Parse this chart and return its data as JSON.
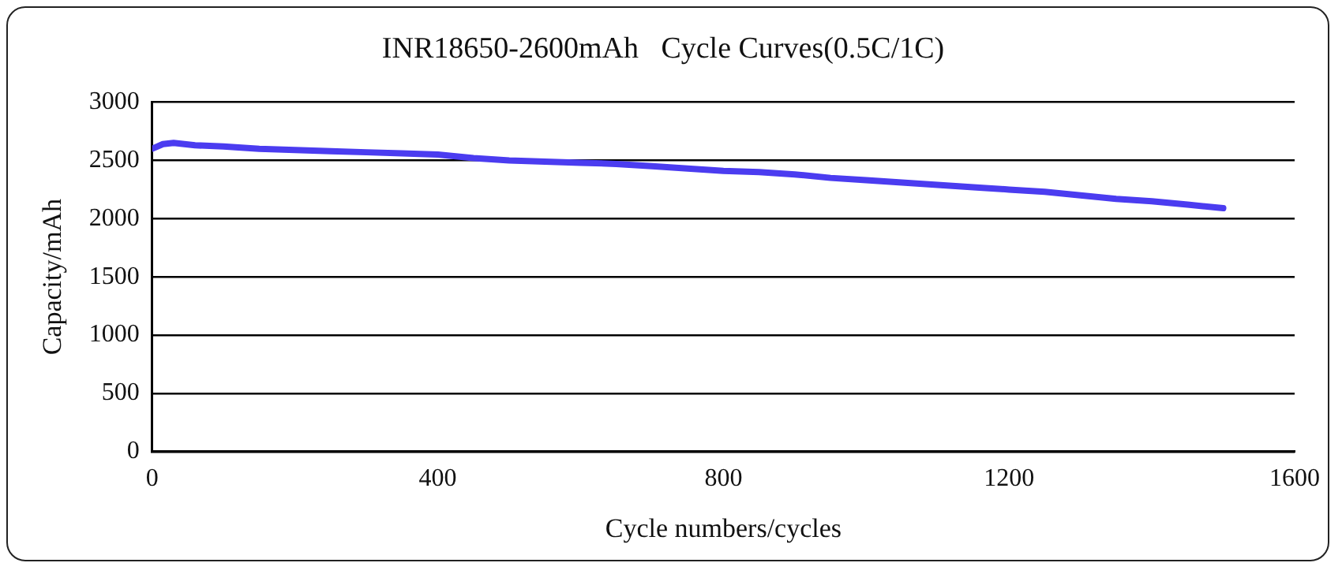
{
  "chart_data": {
    "type": "line",
    "title": "INR18650-2600mAh   Cycle Curves(0.5C/1C)",
    "xlabel": "Cycle numbers/cycles",
    "ylabel": "Capacity/mAh",
    "x": [
      0,
      15,
      30,
      60,
      100,
      150,
      200,
      250,
      300,
      350,
      400,
      450,
      500,
      550,
      600,
      650,
      700,
      750,
      800,
      850,
      900,
      950,
      1000,
      1050,
      1100,
      1150,
      1200,
      1250,
      1300,
      1350,
      1400,
      1450,
      1500
    ],
    "series": [
      {
        "color": "#4b3cf0",
        "values": [
          2600,
          2640,
          2650,
          2630,
          2620,
          2600,
          2590,
          2580,
          2570,
          2560,
          2550,
          2520,
          2500,
          2490,
          2480,
          2470,
          2450,
          2430,
          2410,
          2400,
          2380,
          2350,
          2330,
          2310,
          2290,
          2270,
          2250,
          2230,
          2200,
          2170,
          2150,
          2120,
          2090
        ]
      }
    ],
    "xlim": [
      0,
      1600
    ],
    "xticks": [
      0,
      400,
      800,
      1200,
      1600
    ],
    "ylim": [
      0,
      3000
    ],
    "yticks": [
      0,
      500,
      1000,
      1500,
      2000,
      2500,
      3000
    ],
    "grid": "y",
    "legend": false,
    "marker": "none",
    "line_style": "solid"
  }
}
